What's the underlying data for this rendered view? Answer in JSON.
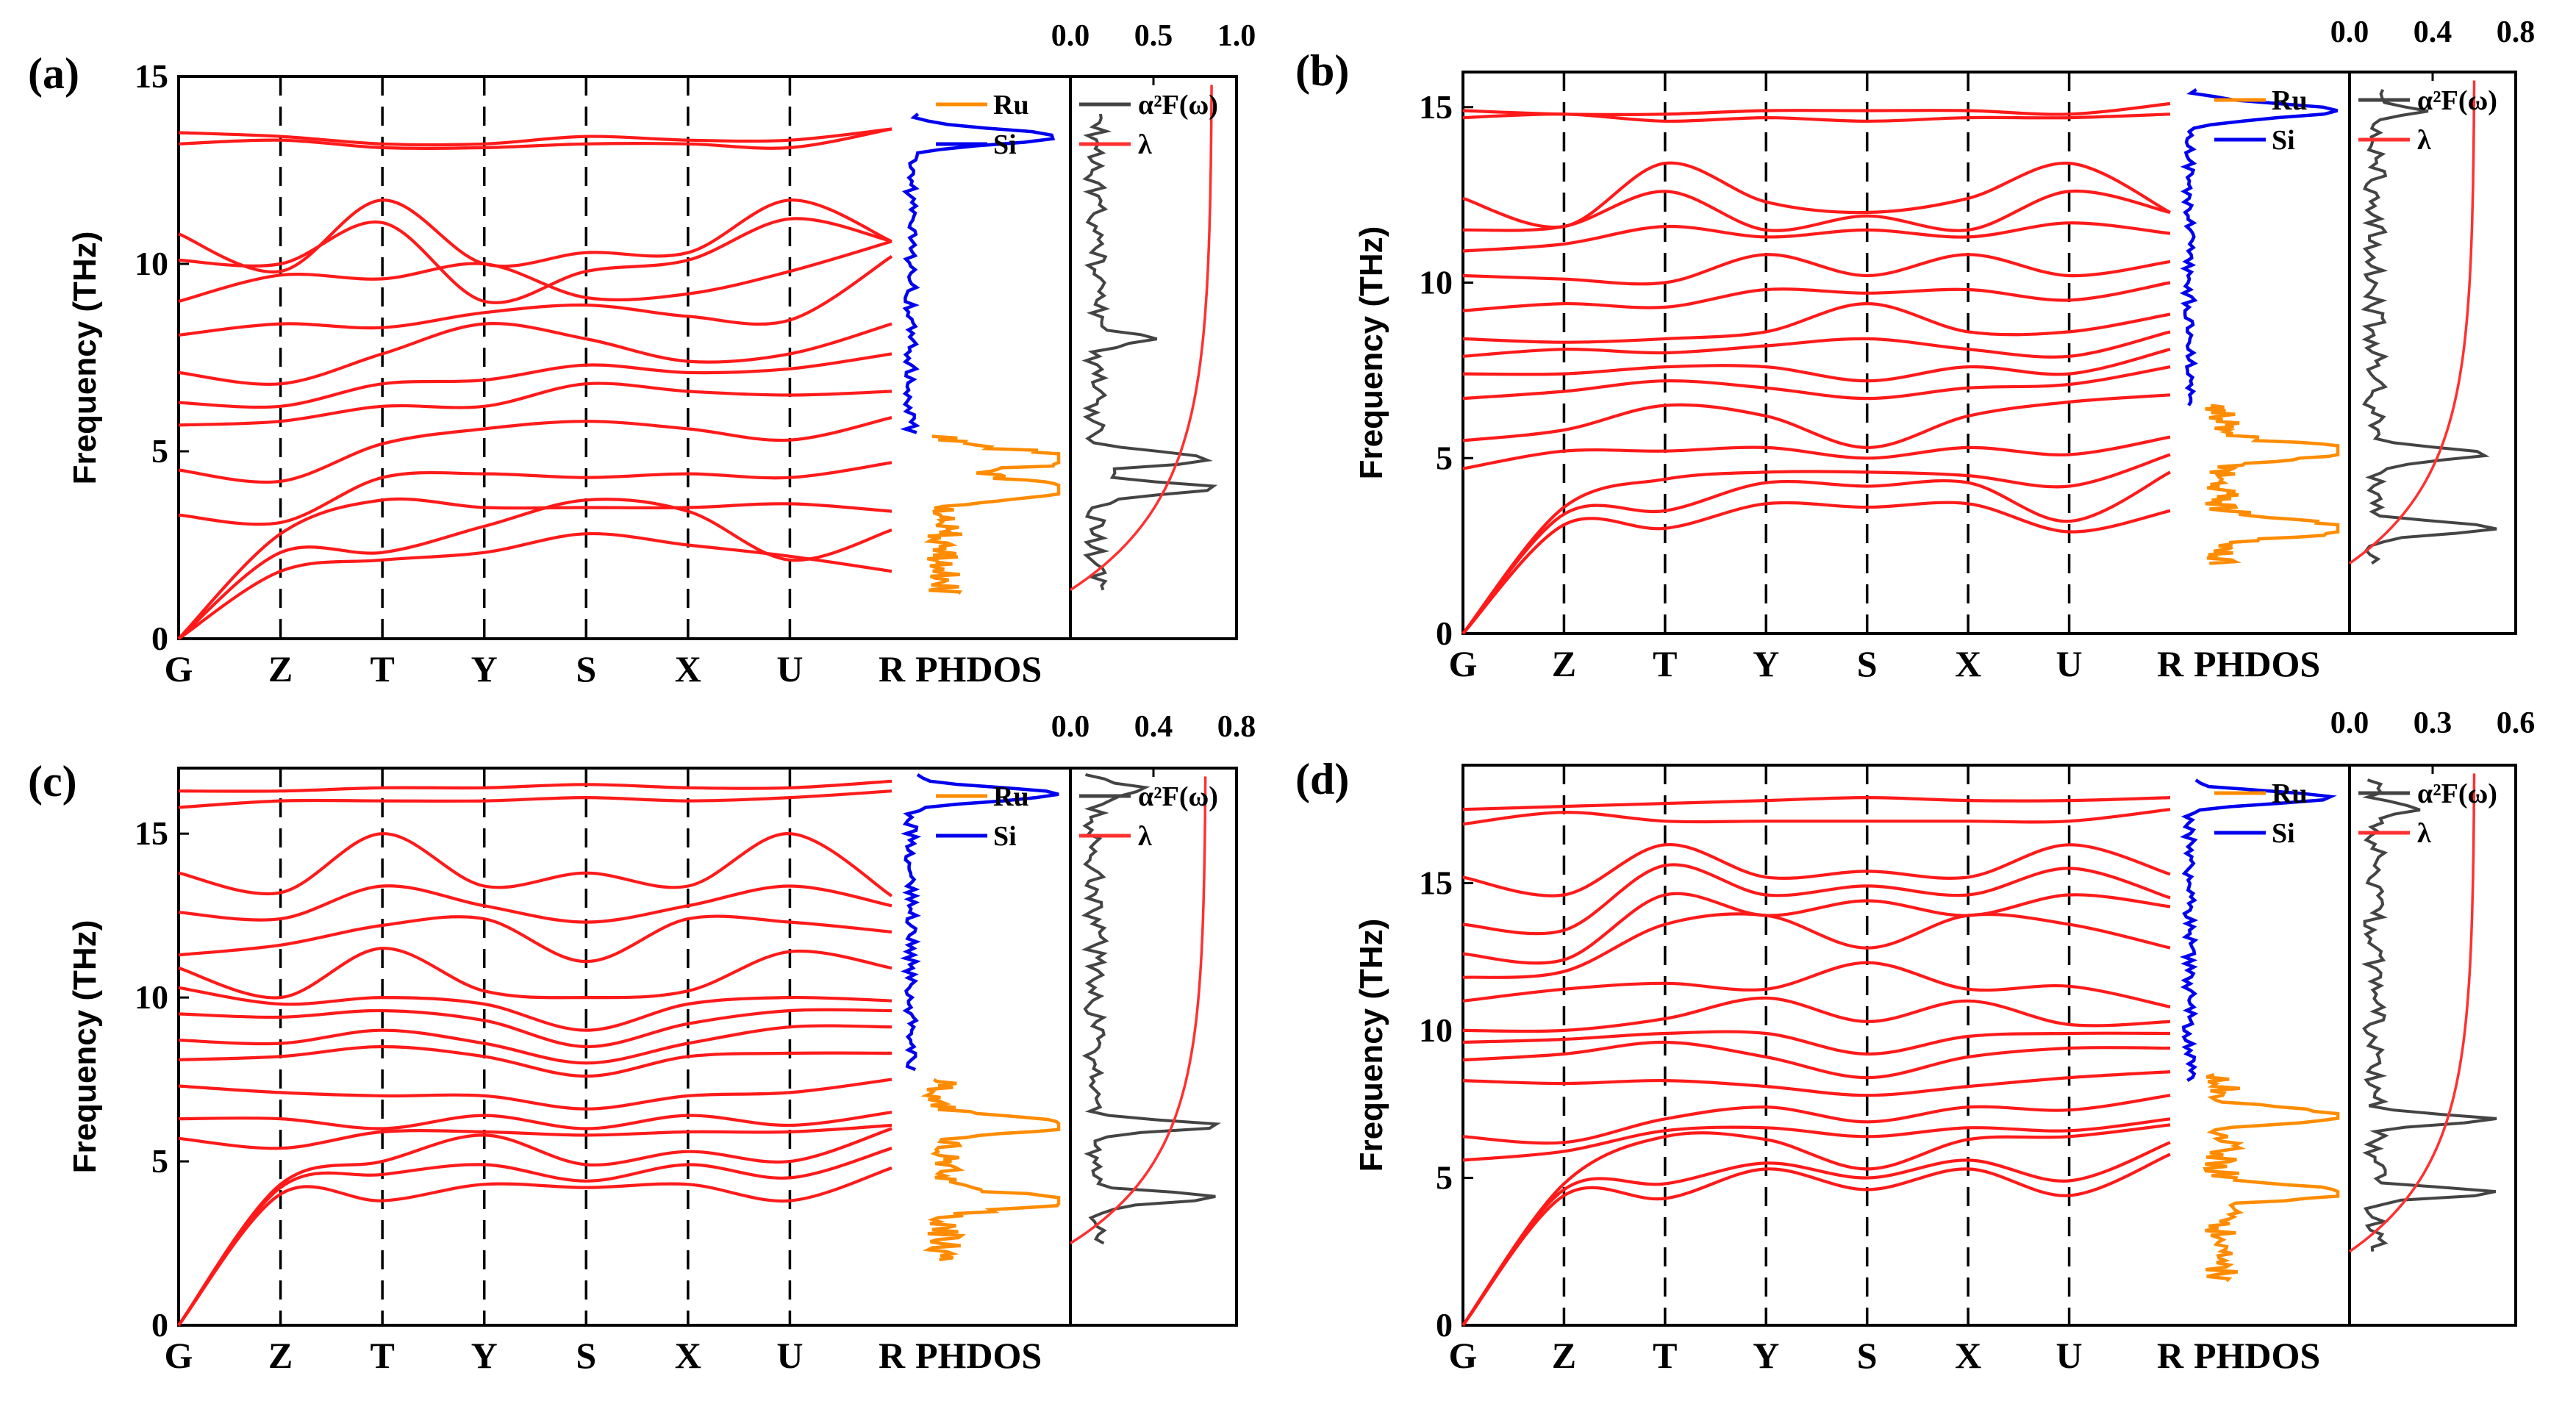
{
  "figure": {
    "x_ticks": [
      "G",
      "Z",
      "T",
      "Y",
      "S",
      "X",
      "U",
      "R"
    ],
    "phdos_label": "PHDOS",
    "y_label": "Frequency (THz)",
    "legend_phdos": [
      "Ru",
      "Si"
    ],
    "legend_a2f": [
      "α²F(ω)",
      "λ"
    ]
  },
  "colors": {
    "bands": "#ff1a1a",
    "ru": "#ff8c00",
    "si": "#0000ee",
    "a2f": "#444444",
    "lambda": "#ff3030"
  },
  "chart_data": [
    {
      "type": "line",
      "panel": "(a)",
      "title": "(a)",
      "xlabel": "",
      "ylabel": "Frequency (THz)",
      "ylim": [
        0,
        15
      ],
      "yticks": [
        "0",
        "5",
        "10",
        "15"
      ],
      "kpoints": [
        "G",
        "Z",
        "T",
        "Y",
        "S",
        "X",
        "U",
        "R"
      ],
      "lambda_ticks": [
        "0.0",
        "0.5",
        "1.0"
      ],
      "lambda_max": 1.0,
      "lambda_final": 0.85,
      "si_range": [
        5.5,
        14.0
      ],
      "ru_range": [
        1.2,
        5.4
      ],
      "ru_peaks": [
        4.0,
        4.8
      ],
      "a2f_peaks": [
        4.0,
        4.8,
        8.0
      ],
      "a2f_range": [
        1.3,
        14.0
      ],
      "bands": [
        [
          0,
          1.8,
          2.1,
          2.3,
          2.8,
          2.5,
          2.2,
          1.8
        ],
        [
          0,
          2.3,
          2.3,
          3.0,
          3.7,
          3.4,
          2.1,
          2.9
        ],
        [
          0,
          2.8,
          3.7,
          3.5,
          3.5,
          3.5,
          3.6,
          3.4
        ],
        [
          3.3,
          3.1,
          4.3,
          4.4,
          4.3,
          4.4,
          4.3,
          4.7
        ],
        [
          4.5,
          4.2,
          5.2,
          5.6,
          5.8,
          5.6,
          5.3,
          5.9
        ],
        [
          5.7,
          5.8,
          6.2,
          6.2,
          6.8,
          6.6,
          6.5,
          6.6
        ],
        [
          6.3,
          6.2,
          6.8,
          6.9,
          7.3,
          7.1,
          7.2,
          7.6
        ],
        [
          7.1,
          6.8,
          7.6,
          8.4,
          8.0,
          7.4,
          7.6,
          8.4
        ],
        [
          8.1,
          8.4,
          8.3,
          8.7,
          8.9,
          8.6,
          8.5,
          10.2
        ],
        [
          9.0,
          9.7,
          9.6,
          10.0,
          9.1,
          9.2,
          9.8,
          10.6
        ],
        [
          10.1,
          10.0,
          11.1,
          9.0,
          9.8,
          10.1,
          11.2,
          10.6
        ],
        [
          10.8,
          9.8,
          11.7,
          10.0,
          10.3,
          10.3,
          11.7,
          10.6
        ],
        [
          13.2,
          13.3,
          13.1,
          13.1,
          13.2,
          13.2,
          13.1,
          13.6
        ],
        [
          13.5,
          13.4,
          13.2,
          13.2,
          13.4,
          13.3,
          13.3,
          13.6
        ]
      ]
    },
    {
      "type": "line",
      "panel": "(b)",
      "title": "(b)",
      "xlabel": "",
      "ylabel": "Frequency (THz)",
      "ylim": [
        0,
        16
      ],
      "yticks": [
        "0",
        "5",
        "10",
        "15"
      ],
      "kpoints": [
        "G",
        "Z",
        "T",
        "Y",
        "S",
        "X",
        "U",
        "R"
      ],
      "lambda_ticks": [
        "0.0",
        "0.4",
        "0.8"
      ],
      "lambda_max": 0.8,
      "lambda_final": 0.6,
      "si_range": [
        6.5,
        15.5
      ],
      "ru_range": [
        2.0,
        6.5
      ],
      "ru_peaks": [
        3.0,
        5.2
      ],
      "a2f_peaks": [
        3.0,
        5.1,
        14.9
      ],
      "a2f_range": [
        2.0,
        15.5
      ],
      "bands": [
        [
          0,
          3.1,
          3.0,
          3.7,
          3.6,
          3.7,
          2.9,
          3.5
        ],
        [
          0,
          3.4,
          3.5,
          4.3,
          4.2,
          4.3,
          3.2,
          4.6
        ],
        [
          0,
          3.6,
          4.4,
          4.6,
          4.6,
          4.5,
          4.2,
          5.1
        ],
        [
          4.7,
          5.2,
          5.2,
          5.3,
          5.0,
          5.3,
          5.1,
          5.6
        ],
        [
          5.5,
          5.8,
          6.5,
          6.2,
          5.3,
          6.2,
          6.6,
          6.8
        ],
        [
          6.7,
          6.9,
          7.2,
          7.0,
          6.7,
          7.0,
          7.1,
          7.6
        ],
        [
          7.4,
          7.4,
          7.6,
          7.6,
          7.2,
          7.6,
          7.4,
          8.1
        ],
        [
          7.9,
          8.1,
          8.0,
          8.2,
          8.4,
          8.1,
          7.9,
          8.6
        ],
        [
          8.4,
          8.3,
          8.4,
          8.6,
          9.4,
          8.6,
          8.6,
          9.1
        ],
        [
          9.2,
          9.4,
          9.3,
          9.8,
          9.7,
          9.8,
          9.5,
          10.0
        ],
        [
          10.2,
          10.1,
          10.0,
          10.8,
          10.2,
          10.8,
          10.2,
          10.6
        ],
        [
          10.9,
          11.1,
          11.6,
          11.3,
          11.5,
          11.3,
          11.7,
          11.4
        ],
        [
          11.5,
          11.6,
          12.6,
          11.5,
          11.9,
          11.5,
          12.6,
          12.0
        ],
        [
          12.4,
          11.6,
          13.4,
          12.3,
          12.0,
          12.4,
          13.4,
          12.0
        ],
        [
          14.7,
          14.8,
          14.6,
          14.7,
          14.6,
          14.7,
          14.7,
          14.8
        ],
        [
          14.9,
          14.8,
          14.8,
          14.9,
          14.9,
          14.9,
          14.8,
          15.1
        ]
      ]
    },
    {
      "type": "line",
      "panel": "(c)",
      "title": "(c)",
      "xlabel": "",
      "ylabel": "Frequency (THz)",
      "ylim": [
        0,
        17
      ],
      "yticks": [
        "0",
        "5",
        "10",
        "15"
      ],
      "kpoints": [
        "G",
        "Z",
        "T",
        "Y",
        "S",
        "X",
        "U",
        "R"
      ],
      "lambda_ticks": [
        "0.0",
        "0.4",
        "0.8"
      ],
      "lambda_max": 0.8,
      "lambda_final": 0.65,
      "si_range": [
        7.8,
        16.8
      ],
      "ru_range": [
        2.0,
        7.5
      ],
      "ru_peaks": [
        3.8,
        6.1
      ],
      "a2f_peaks": [
        3.9,
        6.1,
        16.3
      ],
      "a2f_range": [
        2.5,
        16.8
      ],
      "bands": [
        [
          0,
          4.0,
          3.8,
          4.3,
          4.2,
          4.3,
          3.8,
          4.8
        ],
        [
          0,
          4.2,
          4.6,
          4.9,
          4.4,
          4.9,
          4.5,
          5.4
        ],
        [
          0,
          4.3,
          5.0,
          5.8,
          4.9,
          5.3,
          5.0,
          6.0
        ],
        [
          5.7,
          5.4,
          5.9,
          5.9,
          5.8,
          5.9,
          5.9,
          6.1
        ],
        [
          6.3,
          6.3,
          6.0,
          6.4,
          6.0,
          6.4,
          6.1,
          6.5
        ],
        [
          7.3,
          7.1,
          7.0,
          7.0,
          6.6,
          7.0,
          7.1,
          7.5
        ],
        [
          8.1,
          8.2,
          8.5,
          8.2,
          7.6,
          8.2,
          8.3,
          8.3
        ],
        [
          8.7,
          8.6,
          9.0,
          8.6,
          8.0,
          8.6,
          9.1,
          9.1
        ],
        [
          9.5,
          9.4,
          9.6,
          9.3,
          8.5,
          9.2,
          9.6,
          9.6
        ],
        [
          10.3,
          9.8,
          10.0,
          9.8,
          9.0,
          9.8,
          10.0,
          9.9
        ],
        [
          10.9,
          10.0,
          11.5,
          10.2,
          10.0,
          10.2,
          11.4,
          10.9
        ],
        [
          11.3,
          11.6,
          12.2,
          12.4,
          11.1,
          12.4,
          12.3,
          12.0
        ],
        [
          12.6,
          12.4,
          13.4,
          12.8,
          12.3,
          12.8,
          13.4,
          12.8
        ],
        [
          13.8,
          13.2,
          15.0,
          13.4,
          13.8,
          13.4,
          15.0,
          13.1
        ],
        [
          15.8,
          16.0,
          16.0,
          16.0,
          16.1,
          16.0,
          16.1,
          16.3
        ],
        [
          16.3,
          16.3,
          16.4,
          16.4,
          16.5,
          16.4,
          16.4,
          16.6
        ]
      ]
    },
    {
      "type": "line",
      "panel": "(d)",
      "title": "(d)",
      "xlabel": "",
      "ylabel": "Frequency (THz)",
      "ylim": [
        0,
        19
      ],
      "yticks": [
        "0",
        "5",
        "10",
        "15"
      ],
      "kpoints": [
        "G",
        "Z",
        "T",
        "Y",
        "S",
        "X",
        "U",
        "R"
      ],
      "lambda_ticks": [
        "0.0",
        "0.3",
        "0.6"
      ],
      "lambda_max": 0.6,
      "lambda_final": 0.45,
      "si_range": [
        8.3,
        18.5
      ],
      "ru_range": [
        1.5,
        8.5
      ],
      "ru_peaks": [
        4.5,
        7.1
      ],
      "a2f_peaks": [
        4.5,
        7.0,
        17.5
      ],
      "a2f_range": [
        2.5,
        18.5
      ],
      "bands": [
        [
          0,
          4.4,
          4.3,
          5.3,
          4.6,
          5.3,
          4.4,
          5.8
        ],
        [
          0,
          4.6,
          4.8,
          5.5,
          5.0,
          5.6,
          4.9,
          6.2
        ],
        [
          0,
          4.8,
          6.4,
          6.3,
          5.3,
          6.3,
          6.4,
          6.8
        ],
        [
          5.6,
          5.9,
          6.6,
          6.7,
          6.4,
          6.7,
          6.6,
          7.0
        ],
        [
          6.4,
          6.2,
          7.0,
          7.4,
          6.9,
          7.4,
          7.3,
          7.8
        ],
        [
          8.3,
          8.2,
          8.3,
          8.1,
          7.8,
          8.1,
          8.4,
          8.6
        ],
        [
          9.0,
          9.2,
          9.6,
          9.1,
          8.4,
          9.1,
          9.4,
          9.4
        ],
        [
          9.6,
          9.7,
          9.9,
          9.9,
          9.2,
          9.8,
          9.9,
          9.9
        ],
        [
          10.0,
          10.0,
          10.4,
          11.1,
          10.3,
          11.0,
          10.2,
          10.3
        ],
        [
          11.0,
          11.4,
          11.6,
          11.4,
          12.3,
          11.4,
          11.5,
          10.8
        ],
        [
          11.8,
          12.0,
          13.6,
          13.9,
          12.8,
          13.9,
          13.6,
          12.8
        ],
        [
          12.6,
          12.4,
          14.6,
          13.9,
          14.4,
          13.9,
          14.6,
          14.2
        ],
        [
          13.6,
          13.4,
          15.6,
          14.6,
          14.9,
          14.6,
          15.5,
          14.5
        ],
        [
          15.2,
          14.6,
          16.3,
          15.2,
          15.4,
          15.2,
          16.3,
          15.3
        ],
        [
          17.0,
          17.4,
          17.1,
          17.1,
          17.1,
          17.1,
          17.1,
          17.5
        ],
        [
          17.5,
          17.6,
          17.7,
          17.8,
          17.9,
          17.8,
          17.8,
          17.9
        ]
      ]
    }
  ]
}
